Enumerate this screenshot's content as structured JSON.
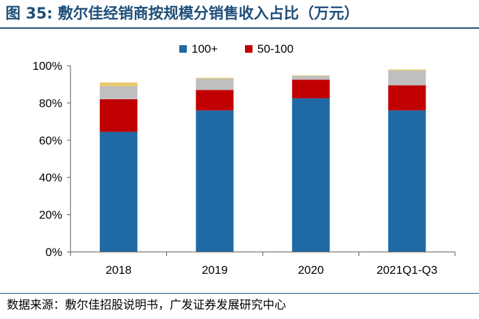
{
  "header": {
    "title": "图 35: 敷尔佳经销商按规模分销售收入占比（万元）"
  },
  "footer": {
    "source": "数据来源：敷尔佳招股说明书，广发证券发展研究中心"
  },
  "chart_data": {
    "type": "bar",
    "stacked": true,
    "categories": [
      "2018",
      "2019",
      "2020",
      "2021Q1-Q3"
    ],
    "series": [
      {
        "name": "100+",
        "color": "#1f6aa5",
        "values": [
          64.5,
          76,
          82.5,
          76
        ]
      },
      {
        "name": "50-100",
        "color": "#c00000",
        "values": [
          17.5,
          11,
          10,
          13.5
        ]
      },
      {
        "name": "",
        "color": "#bfbfbf",
        "values": [
          7,
          6,
          2,
          8
        ]
      },
      {
        "name": "",
        "color": "#e8c96a",
        "values": [
          2,
          0.5,
          0.3,
          0.5
        ]
      }
    ],
    "ylim": [
      0,
      100
    ],
    "yticks": [
      "0%",
      "20%",
      "40%",
      "60%",
      "80%",
      "100%"
    ],
    "legend_position": "top-center",
    "grid": false
  }
}
